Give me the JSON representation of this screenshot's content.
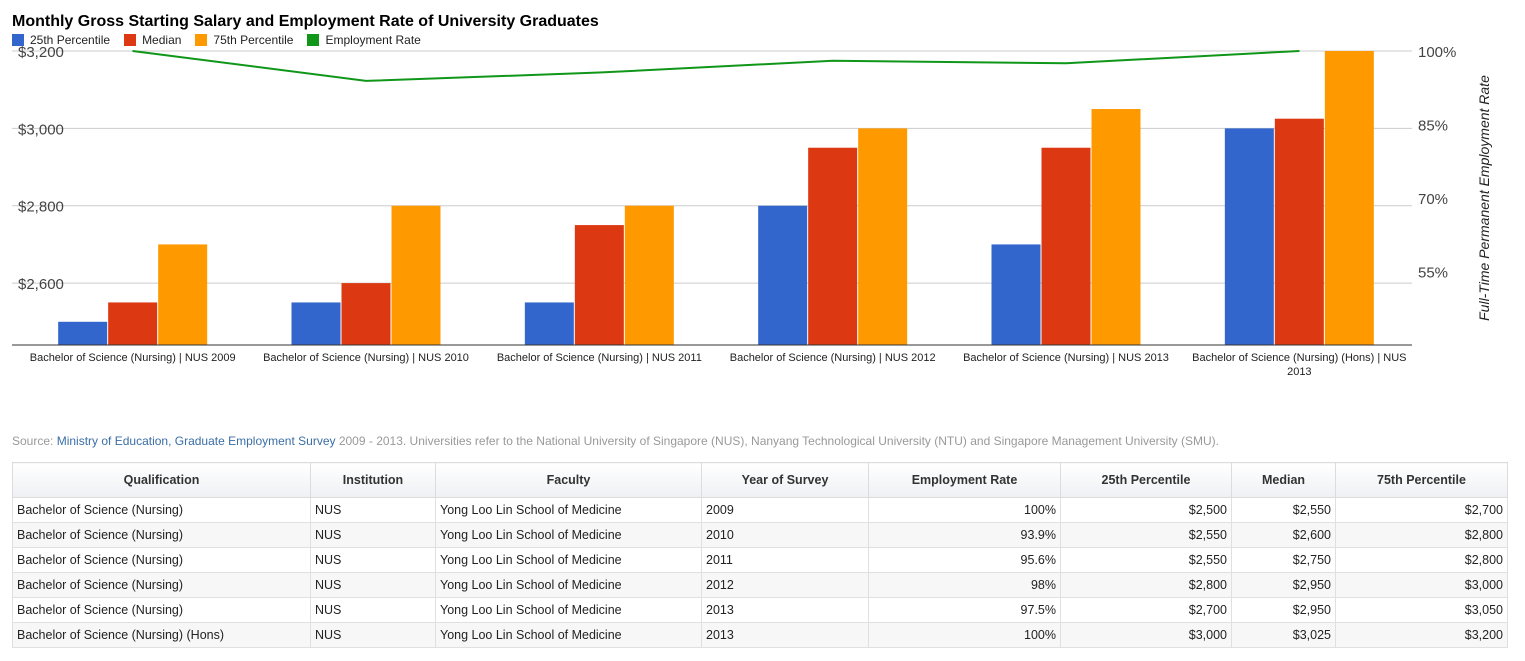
{
  "chart_data": {
    "type": "bar",
    "title": "Monthly Gross Starting Salary and Employment Rate of University Graduates",
    "categories": [
      [
        "Bachelor of Science (Nursing) | NUS 2009"
      ],
      [
        "Bachelor of Science (Nursing) | NUS 2010"
      ],
      [
        "Bachelor of Science (Nursing) | NUS 2011"
      ],
      [
        "Bachelor of Science (Nursing) | NUS 2012"
      ],
      [
        "Bachelor of Science (Nursing) | NUS 2013"
      ],
      [
        "Bachelor of Science (Nursing) (Hons) | NUS",
        "2013"
      ]
    ],
    "series": [
      {
        "name": "25th Percentile",
        "color": "#3366cc",
        "values": [
          2500,
          2550,
          2550,
          2800,
          2700,
          3000
        ]
      },
      {
        "name": "Median",
        "color": "#dc3912",
        "values": [
          2550,
          2600,
          2750,
          2950,
          2950,
          3025
        ]
      },
      {
        "name": "75th Percentile",
        "color": "#ff9900",
        "values": [
          2700,
          2800,
          2800,
          3000,
          3050,
          3200
        ]
      }
    ],
    "line_series": {
      "name": "Employment Rate",
      "color": "#109618",
      "values": [
        100,
        93.9,
        95.6,
        98,
        97.5,
        100
      ]
    },
    "y_left": {
      "ticks": [
        2600,
        2800,
        3000,
        3200
      ],
      "tick_labels": [
        "$2,600",
        "$2,800",
        "$3,000",
        "$3,200"
      ],
      "range": [
        2440,
        3200
      ]
    },
    "y_right": {
      "ticks": [
        55,
        70,
        85,
        100
      ],
      "tick_labels": [
        "55%",
        "70%",
        "85%",
        "100%"
      ],
      "range": [
        40,
        100
      ],
      "label": "Full-Time Permanent Employment Rate"
    },
    "grid": true,
    "legend_position": "top-left"
  },
  "source": {
    "prefix": "Source: ",
    "link": "Ministry of Education, Graduate Employment Survey",
    "suffix": " 2009 - 2013. Universities refer to the National University of Singapore (NUS), Nanyang Technological University (NTU) and Singapore Management University (SMU)."
  },
  "table": {
    "headers": [
      "Qualification",
      "Institution",
      "Faculty",
      "Year of Survey",
      "Employment Rate",
      "25th Percentile",
      "Median",
      "75th Percentile"
    ],
    "rows": [
      [
        "Bachelor of Science (Nursing)",
        "NUS",
        "Yong Loo Lin School of Medicine",
        "2009",
        "100%",
        "$2,500",
        "$2,550",
        "$2,700"
      ],
      [
        "Bachelor of Science (Nursing)",
        "NUS",
        "Yong Loo Lin School of Medicine",
        "2010",
        "93.9%",
        "$2,550",
        "$2,600",
        "$2,800"
      ],
      [
        "Bachelor of Science (Nursing)",
        "NUS",
        "Yong Loo Lin School of Medicine",
        "2011",
        "95.6%",
        "$2,550",
        "$2,750",
        "$2,800"
      ],
      [
        "Bachelor of Science (Nursing)",
        "NUS",
        "Yong Loo Lin School of Medicine",
        "2012",
        "98%",
        "$2,800",
        "$2,950",
        "$3,000"
      ],
      [
        "Bachelor of Science (Nursing)",
        "NUS",
        "Yong Loo Lin School of Medicine",
        "2013",
        "97.5%",
        "$2,700",
        "$2,950",
        "$3,050"
      ],
      [
        "Bachelor of Science (Nursing) (Hons)",
        "NUS",
        "Yong Loo Lin School of Medicine",
        "2013",
        "100%",
        "$3,000",
        "$3,025",
        "$3,200"
      ]
    ]
  }
}
